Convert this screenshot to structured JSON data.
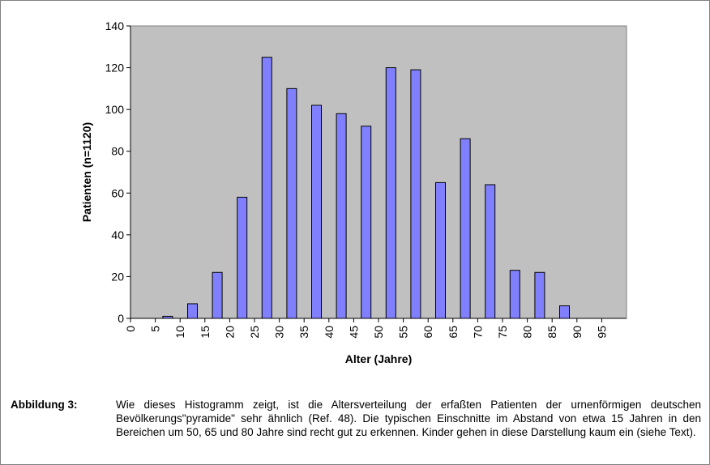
{
  "chart_data": {
    "type": "bar",
    "xlabel": "Alter (Jahre)",
    "ylabel": "Patienten (n=1120)",
    "ylim": [
      0,
      140
    ],
    "yticks": [
      0,
      20,
      40,
      60,
      80,
      100,
      120,
      140
    ],
    "xlim": [
      0,
      100
    ],
    "xticks": [
      0,
      5,
      10,
      15,
      20,
      25,
      30,
      35,
      40,
      45,
      50,
      55,
      60,
      65,
      70,
      75,
      80,
      85,
      90,
      95
    ],
    "x": [
      7.5,
      12.5,
      17.5,
      22.5,
      27.5,
      32.5,
      37.5,
      42.5,
      47.5,
      52.5,
      57.5,
      62.5,
      67.5,
      72.5,
      77.5,
      82.5,
      87.5
    ],
    "values": [
      1,
      7,
      22,
      58,
      125,
      110,
      102,
      98,
      92,
      120,
      119,
      65,
      86,
      64,
      23,
      22,
      6
    ],
    "bar_color": "#8080ff",
    "plot_background": "#c0c0c0",
    "grid": false,
    "legend": "none"
  },
  "caption": {
    "label": "Abbildung 3:",
    "text": "Wie dieses Histogramm zeigt, ist die Altersverteilung der erfaßten Patienten der urnenförmigen deutschen Bevölkerungs\"pyramide\" sehr ähnlich (Ref. 48). Die typischen Einschnitte im Abstand von etwa 15 Jahren in den Bereichen um 50, 65 und 80 Jahre sind recht gut zu erkennen. Kinder gehen in diese Darstellung kaum ein (siehe Text)."
  }
}
